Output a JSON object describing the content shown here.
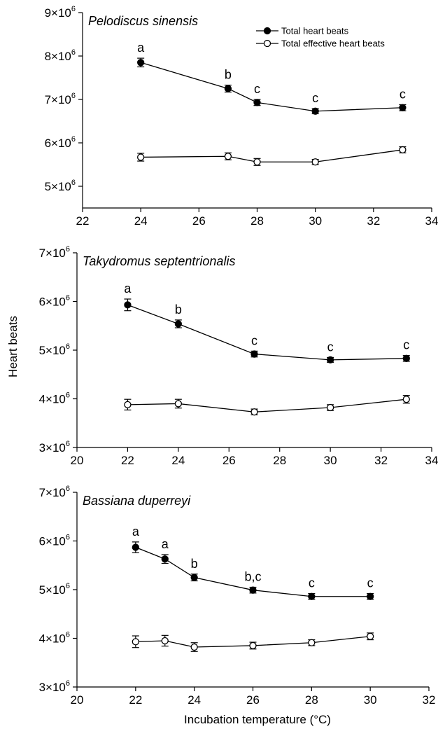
{
  "figure": {
    "ylabel": "Heart beats",
    "xlabel": "Incubation temperature (°C)",
    "legend": {
      "placement": "top-right of first panel",
      "total": "Total heart beats",
      "effective": "Total effective heart beats"
    }
  },
  "chart_data": [
    {
      "type": "line",
      "title": "Pelodiscus sinensis",
      "xlabel": "",
      "ylabel": "Heart beats",
      "xlim": [
        22,
        34
      ],
      "ylim": [
        4500000,
        9000000
      ],
      "xticks": [
        22,
        24,
        26,
        28,
        30,
        32,
        34
      ],
      "yticks": [
        5,
        6,
        7,
        8,
        9
      ],
      "x": [
        24,
        27,
        28,
        30,
        33
      ],
      "series": [
        {
          "name": "Total heart beats",
          "marker": "filled-circle",
          "values": [
            7850000,
            7250000,
            6930000,
            6730000,
            6810000
          ],
          "errors": [
            100000,
            80000,
            70000,
            60000,
            70000
          ]
        },
        {
          "name": "Total effective heart beats",
          "marker": "open-circle",
          "values": [
            5670000,
            5690000,
            5560000,
            5560000,
            5840000
          ],
          "errors": [
            90000,
            80000,
            80000,
            60000,
            70000
          ]
        }
      ],
      "significance_letters": [
        "a",
        "b",
        "c",
        "c",
        "c"
      ]
    },
    {
      "type": "line",
      "title": "Takydromus septentrionalis",
      "xlabel": "",
      "ylabel": "Heart beats",
      "xlim": [
        20,
        34
      ],
      "ylim": [
        3000000,
        7000000
      ],
      "xticks": [
        20,
        22,
        24,
        26,
        28,
        30,
        32,
        34
      ],
      "yticks": [
        3,
        4,
        5,
        6,
        7
      ],
      "x": [
        22,
        24,
        27,
        30,
        33
      ],
      "series": [
        {
          "name": "Total heart beats",
          "marker": "filled-circle",
          "values": [
            5930000,
            5540000,
            4920000,
            4800000,
            4830000
          ],
          "errors": [
            120000,
            80000,
            60000,
            50000,
            60000
          ]
        },
        {
          "name": "Total effective heart beats",
          "marker": "open-circle",
          "values": [
            3880000,
            3900000,
            3730000,
            3820000,
            3990000
          ],
          "errors": [
            110000,
            90000,
            60000,
            60000,
            80000
          ]
        }
      ],
      "significance_letters": [
        "a",
        "b",
        "c",
        "c",
        "c"
      ]
    },
    {
      "type": "line",
      "title": "Bassiana duperreyi",
      "xlabel": "Incubation temperature (°C)",
      "ylabel": "Heart beats",
      "xlim": [
        20,
        32
      ],
      "ylim": [
        3000000,
        7000000
      ],
      "xticks": [
        20,
        22,
        24,
        26,
        28,
        30,
        32
      ],
      "yticks": [
        3,
        4,
        5,
        6,
        7
      ],
      "x": [
        22,
        23,
        24,
        26,
        28,
        30
      ],
      "series": [
        {
          "name": "Total heart beats",
          "marker": "filled-circle",
          "values": [
            5870000,
            5630000,
            5250000,
            4990000,
            4860000,
            4860000
          ],
          "errors": [
            110000,
            90000,
            70000,
            60000,
            60000,
            60000
          ]
        },
        {
          "name": "Total effective heart beats",
          "marker": "open-circle",
          "values": [
            3930000,
            3950000,
            3820000,
            3850000,
            3910000,
            4040000
          ],
          "errors": [
            120000,
            110000,
            90000,
            70000,
            60000,
            70000
          ]
        }
      ],
      "significance_letters": [
        "a",
        "a",
        "b",
        "b,c",
        "c",
        "c"
      ]
    }
  ]
}
